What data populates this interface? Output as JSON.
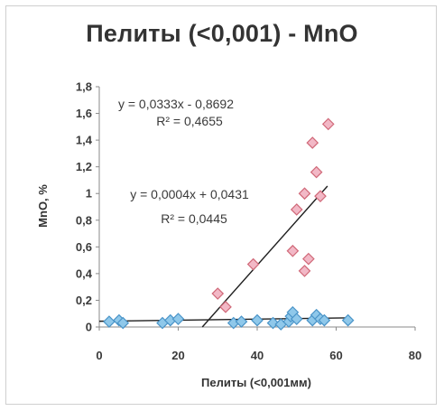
{
  "chart_data": {
    "type": "scatter",
    "title": "Пелиты (<0,001) - MnO",
    "xlabel": "Пелиты (<0,001мм)",
    "ylabel": "MnO, %",
    "xlim": [
      0,
      80
    ],
    "ylim": [
      0,
      1.8
    ],
    "xticks": [
      "0",
      "20",
      "40",
      "60",
      "80"
    ],
    "yticks": [
      "0",
      "0,2",
      "0,4",
      "0,6",
      "0,8",
      "1",
      "1,2",
      "1,4",
      "1,6",
      "1,8"
    ],
    "grid": false,
    "series": [
      {
        "marker": "diamond",
        "color": "#f2b8c6",
        "stroke": "#d06878",
        "points": [
          [
            30,
            0.25
          ],
          [
            32,
            0.15
          ],
          [
            39,
            0.47
          ],
          [
            49,
            0.57
          ],
          [
            50,
            0.88
          ],
          [
            52,
            1.0
          ],
          [
            52,
            0.42
          ],
          [
            53,
            0.51
          ],
          [
            54,
            1.38
          ],
          [
            55,
            1.16
          ],
          [
            56,
            0.98
          ],
          [
            58,
            1.52
          ]
        ],
        "trendline": {
          "slope": 0.0333,
          "intercept": -0.8692,
          "x_range": [
            26.1,
            57.8
          ]
        },
        "equation": "y = 0,0333x - 0,8692",
        "r2": "R² = 0,4655"
      },
      {
        "marker": "diamond",
        "color": "#8fc8ea",
        "stroke": "#4a94c8",
        "points": [
          [
            2.5,
            0.04
          ],
          [
            5,
            0.05
          ],
          [
            6,
            0.03
          ],
          [
            16,
            0.03
          ],
          [
            18,
            0.05
          ],
          [
            20,
            0.06
          ],
          [
            34,
            0.03
          ],
          [
            36,
            0.04
          ],
          [
            40,
            0.05
          ],
          [
            44,
            0.03
          ],
          [
            46,
            0.02
          ],
          [
            48,
            0.04
          ],
          [
            48.5,
            0.08
          ],
          [
            49,
            0.11
          ],
          [
            50,
            0.06
          ],
          [
            54,
            0.05
          ],
          [
            55,
            0.09
          ],
          [
            56,
            0.06
          ],
          [
            57,
            0.05
          ],
          [
            63,
            0.05
          ]
        ],
        "trendline": {
          "slope": 0.0004,
          "intercept": 0.0431,
          "x_range": [
            0,
            63
          ]
        },
        "equation": "y = 0,0004x + 0,0431",
        "r2": "R² = 0,0445"
      }
    ]
  }
}
